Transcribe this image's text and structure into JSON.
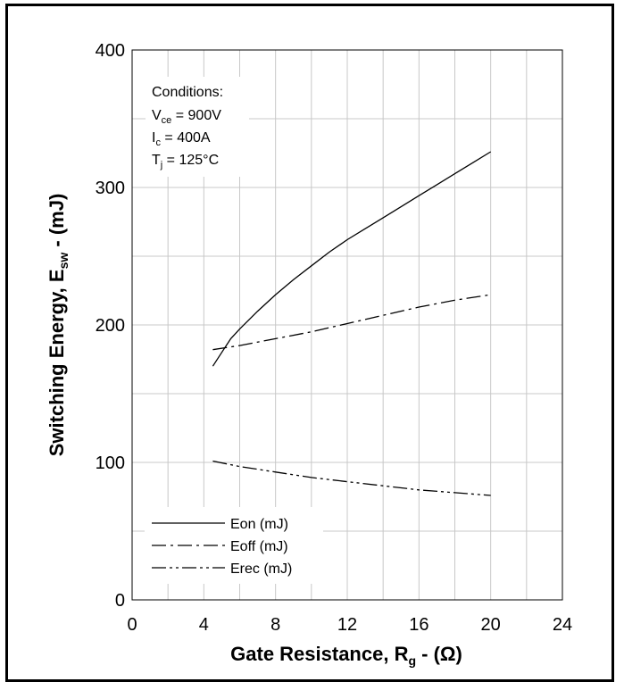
{
  "chart_data": {
    "type": "line",
    "xlabel": "Gate Resistance, R",
    "xlabel_sub": "g",
    "xlabel_tail": " - (Ω)",
    "ylabel": "Switching Energy, E",
    "ylabel_sub": "sw",
    "ylabel_tail": " - (mJ)",
    "xlim": [
      0,
      24
    ],
    "ylim": [
      0,
      400
    ],
    "xticks": [
      0,
      4,
      8,
      12,
      16,
      20,
      24
    ],
    "yticks": [
      0,
      100,
      200,
      300,
      400
    ],
    "x_minor_step": 2,
    "y_minor_step": 50,
    "grid": true,
    "legend_position": "bottom-left",
    "conditions": {
      "title": "Conditions:",
      "lines": [
        {
          "main": "V",
          "sub": "ce",
          "tail": " = 900V"
        },
        {
          "main": "I",
          "sub": "c",
          "tail": " = 400A"
        },
        {
          "main": "T",
          "sub": "j",
          "tail": " = 125°C"
        }
      ]
    },
    "series": [
      {
        "name": "Eon (mJ)",
        "dash": "solid",
        "x": [
          4.5,
          5,
          5.5,
          6,
          7,
          8,
          9,
          10,
          11,
          12,
          13,
          14,
          15,
          16,
          17,
          18,
          19,
          20
        ],
        "y": [
          170,
          180,
          190,
          197,
          210,
          222,
          233,
          243,
          253,
          262,
          270,
          278,
          286,
          294,
          302,
          310,
          318,
          326
        ]
      },
      {
        "name": "Eoff (mJ)",
        "dash": "dash-dot",
        "x": [
          4.5,
          6,
          8,
          10,
          12,
          14,
          16,
          18,
          20
        ],
        "y": [
          182,
          185,
          190,
          195,
          201,
          207,
          213,
          218,
          222
        ]
      },
      {
        "name": "Erec (mJ)",
        "dash": "dash-dot-dot",
        "x": [
          4.5,
          6,
          8,
          10,
          12,
          14,
          16,
          18,
          20
        ],
        "y": [
          101,
          97,
          93,
          89,
          86,
          83,
          80,
          78,
          76
        ]
      }
    ]
  }
}
